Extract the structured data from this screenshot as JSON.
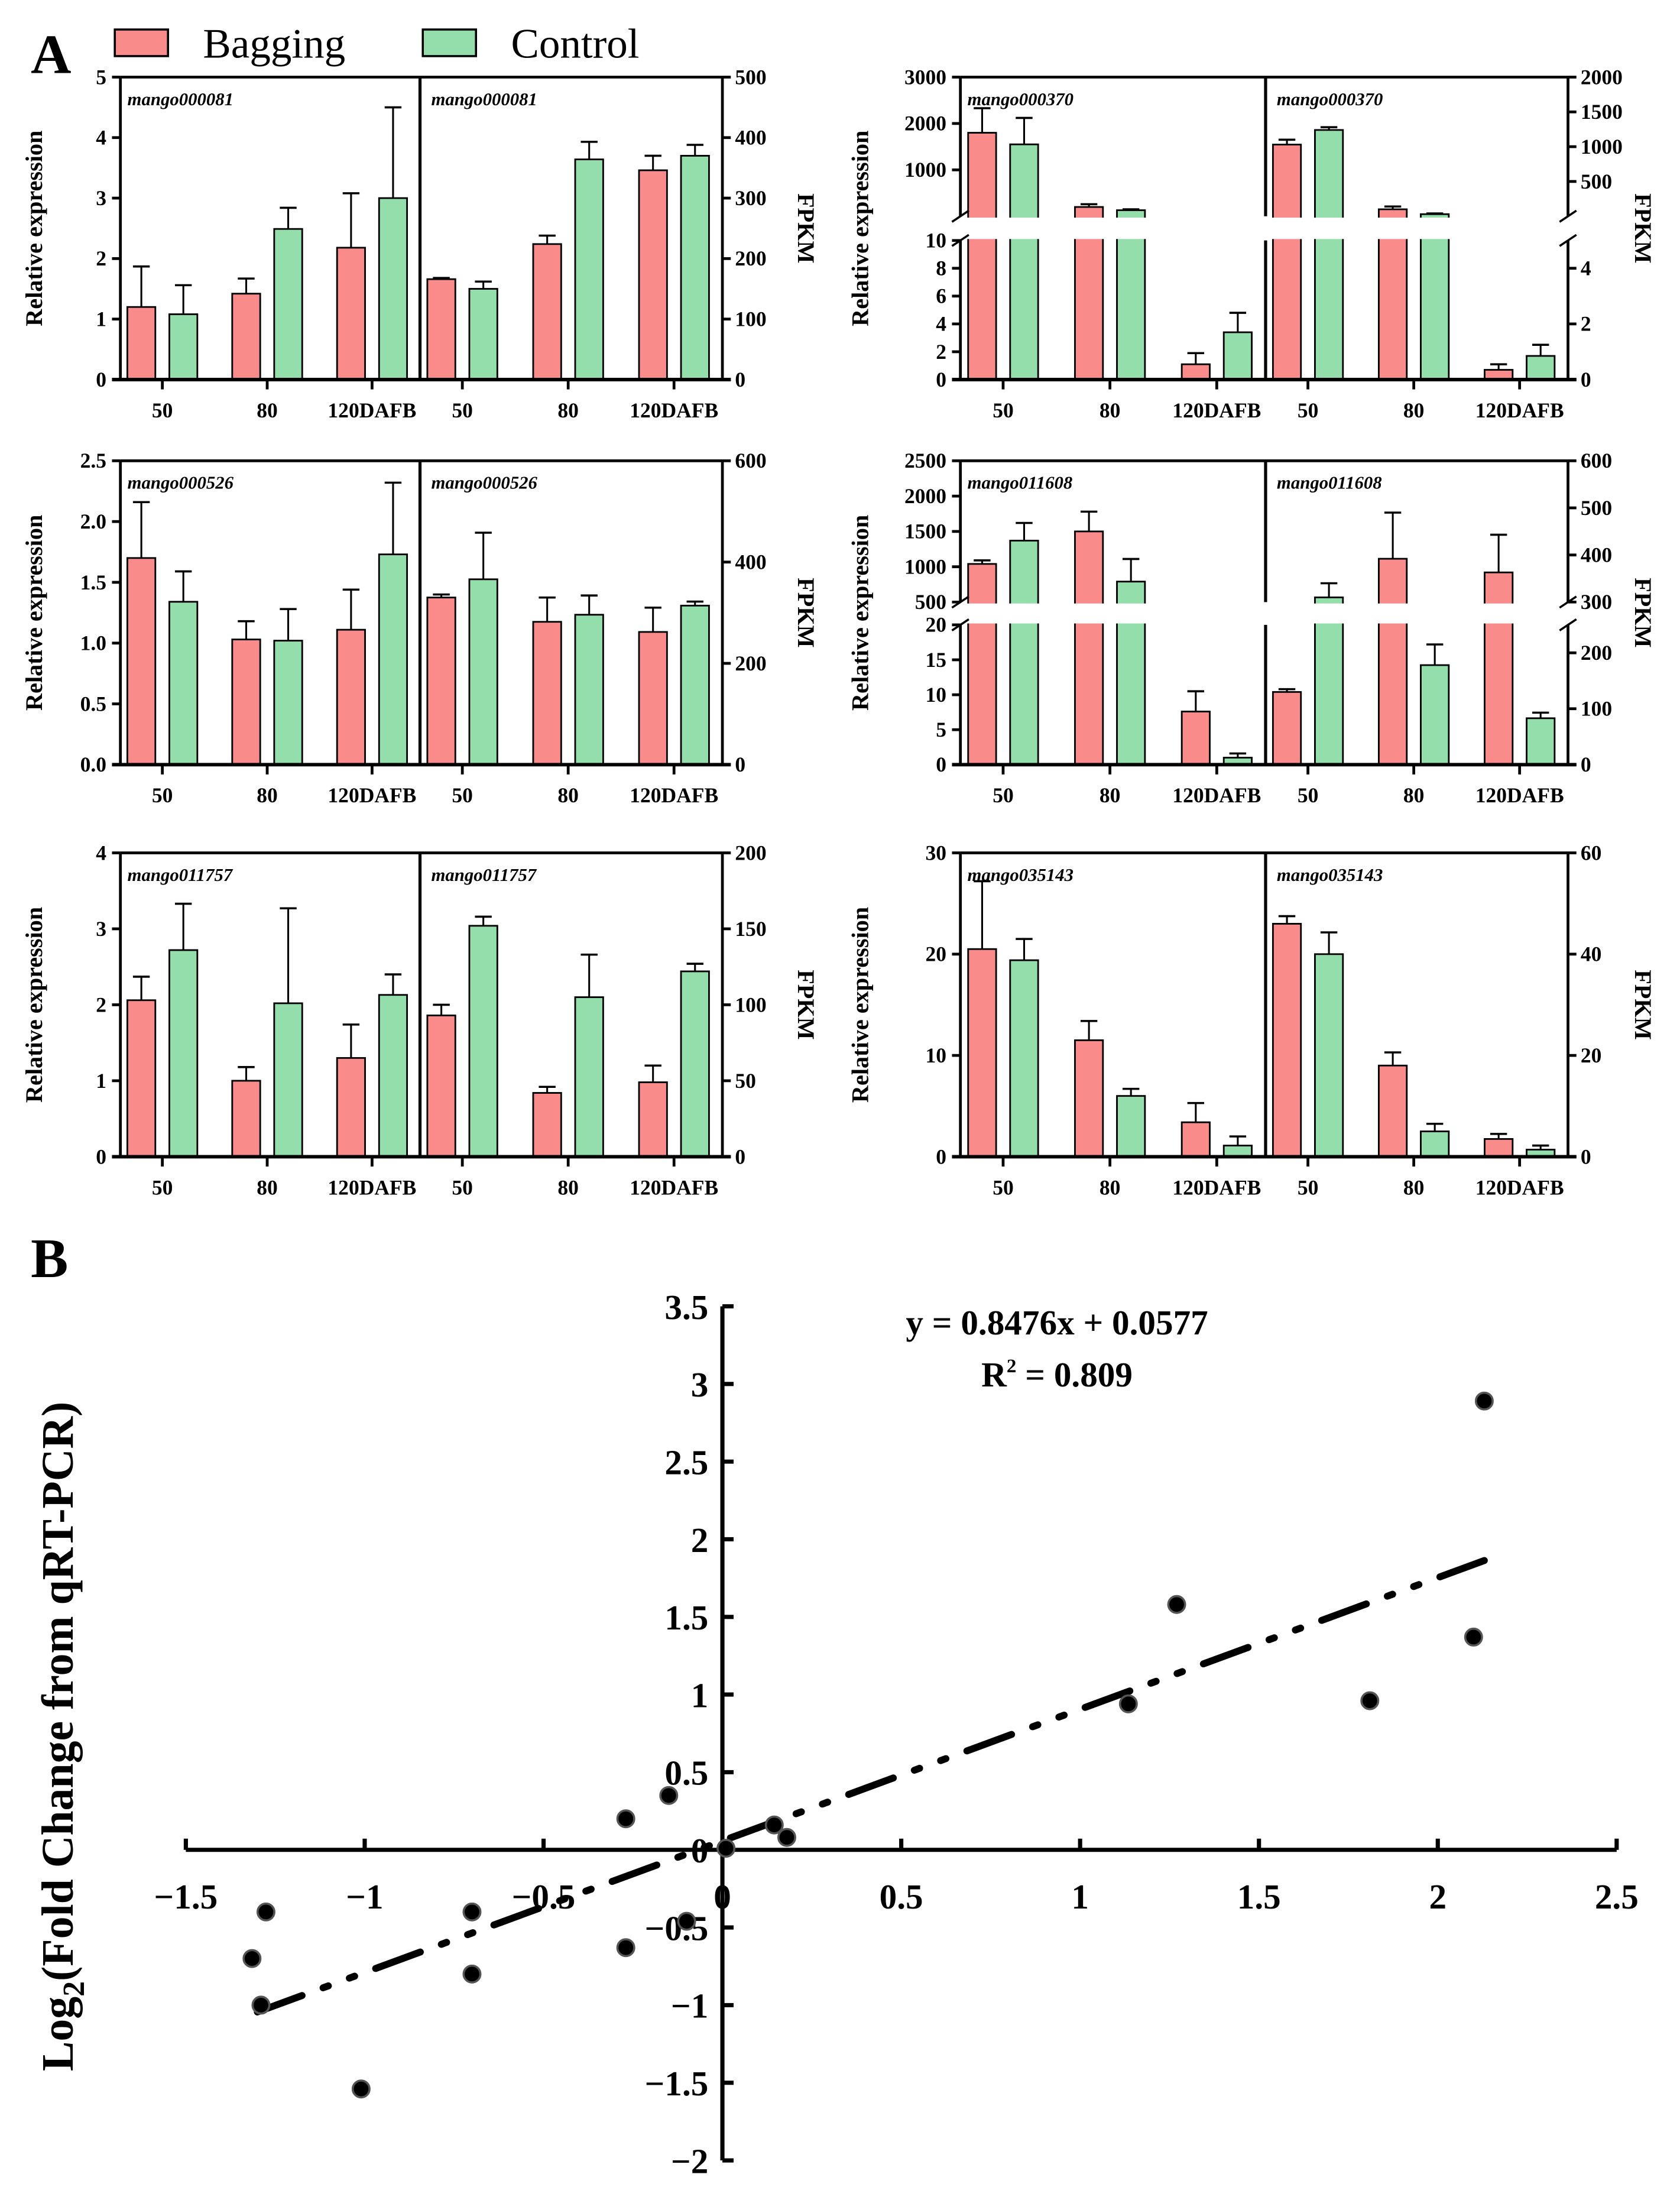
{
  "colors": {
    "bagging": "#F98B8B",
    "control": "#93DEAA",
    "axis": "#000000"
  },
  "panel_a": {
    "label": "A",
    "legend": [
      {
        "name": "Bagging",
        "color": "#F98B8B"
      },
      {
        "name": "Control",
        "color": "#93DEAA"
      }
    ],
    "left_ylabel": "Relative expression",
    "right_ylabel": "FPKM",
    "x_labels": [
      "50",
      "80",
      "120DAFB"
    ]
  },
  "chart_data": [
    {
      "type": "bar",
      "gene": "mango000081",
      "rel": {
        "ticks": [
          "0",
          "1",
          "2",
          "3",
          "4",
          "5"
        ],
        "ylim": [
          0,
          5
        ],
        "bagging": [
          1.2,
          1.42,
          2.18
        ],
        "bagging_err": [
          1.87,
          1.67,
          3.08
        ],
        "control": [
          1.08,
          2.49,
          3.0
        ],
        "control_err": [
          1.56,
          2.84,
          4.5
        ]
      },
      "fpkm": {
        "ticks": [
          "0",
          "100",
          "200",
          "300",
          "400",
          "500"
        ],
        "ylim": [
          0,
          500
        ],
        "bagging": [
          166,
          224,
          346
        ],
        "bagging_err": [
          168,
          238,
          370
        ],
        "control": [
          150,
          364,
          370
        ],
        "control_err": [
          162,
          393,
          388
        ]
      }
    },
    {
      "type": "bar",
      "gene": "mango000370",
      "rel": {
        "ticks": [
          "0",
          "2",
          "4",
          "6",
          "8",
          "10",
          "1000",
          "2000",
          "3000"
        ],
        "break": {
          "lower": [
            0,
            10
          ],
          "upper": [
            0,
            3000
          ]
        },
        "bagging": [
          1800,
          200,
          1.1
        ],
        "bagging_err": [
          2330,
          260,
          1.9
        ],
        "control": [
          1550,
          130,
          3.4
        ],
        "control_err": [
          2120,
          150,
          4.8
        ]
      },
      "fpkm": {
        "ticks": [
          "0",
          "2",
          "4",
          "500",
          "1000",
          "1500",
          "2000"
        ],
        "break": {
          "lower": [
            0,
            5
          ],
          "upper": [
            0,
            2000
          ]
        },
        "bagging": [
          1030,
          100,
          0.35
        ],
        "bagging_err": [
          1100,
          140,
          0.55
        ],
        "control": [
          1240,
          30,
          0.85
        ],
        "control_err": [
          1280,
          40,
          1.25
        ]
      }
    },
    {
      "type": "bar",
      "gene": "mango000526",
      "rel": {
        "ticks": [
          "0.0",
          "0.5",
          "1.0",
          "1.5",
          "2.0",
          "2.5"
        ],
        "ylim": [
          0,
          2.5
        ],
        "bagging": [
          1.7,
          1.03,
          1.11
        ],
        "bagging_err": [
          2.16,
          1.18,
          1.44
        ],
        "control": [
          1.34,
          1.02,
          1.73
        ],
        "control_err": [
          1.59,
          1.28,
          2.32
        ]
      },
      "fpkm": {
        "ticks": [
          "0",
          "200",
          "400",
          "600"
        ],
        "ylim": [
          0,
          600
        ],
        "bagging": [
          330,
          282,
          262
        ],
        "bagging_err": [
          336,
          330,
          310
        ],
        "control": [
          366,
          296,
          314
        ],
        "control_err": [
          458,
          334,
          322
        ]
      }
    },
    {
      "type": "bar",
      "gene": "mango011608",
      "rel": {
        "ticks": [
          "0",
          "5",
          "10",
          "15",
          "20",
          "500",
          "1000",
          "1500",
          "2000",
          "2500"
        ],
        "break": {
          "lower": [
            0,
            20
          ],
          "upper": [
            500,
            2500
          ]
        },
        "bagging": [
          1040,
          1500,
          7.6
        ],
        "bagging_err": [
          1090,
          1780,
          10.5
        ],
        "control": [
          1370,
          790,
          1.0
        ],
        "control_err": [
          1620,
          1110,
          1.6
        ]
      },
      "fpkm": {
        "ticks": [
          "0",
          "100",
          "200",
          "300",
          "400",
          "500",
          "600"
        ],
        "break": {
          "lower": [
            0,
            250
          ],
          "upper": [
            300,
            600
          ]
        },
        "bagging": [
          130,
          392,
          363
        ],
        "bagging_err": [
          135,
          490,
          443
        ],
        "control": [
          310,
          178,
          83
        ],
        "control_err": [
          340,
          215,
          93
        ]
      }
    },
    {
      "type": "bar",
      "gene": "mango011757",
      "rel": {
        "ticks": [
          "0",
          "1",
          "2",
          "3",
          "4"
        ],
        "ylim": [
          0,
          4
        ],
        "bagging": [
          2.06,
          1.0,
          1.3
        ],
        "bagging_err": [
          2.37,
          1.18,
          1.74
        ],
        "control": [
          2.72,
          2.02,
          2.13
        ],
        "control_err": [
          3.33,
          3.27,
          2.4
        ]
      },
      "fpkm": {
        "ticks": [
          "0",
          "50",
          "100",
          "150",
          "200"
        ],
        "ylim": [
          0,
          200
        ],
        "bagging": [
          93,
          42,
          49
        ],
        "bagging_err": [
          100,
          46,
          60
        ],
        "control": [
          152,
          105,
          122
        ],
        "control_err": [
          158,
          133,
          127
        ]
      }
    },
    {
      "type": "bar",
      "gene": "mango035143",
      "rel": {
        "ticks": [
          "0",
          "10",
          "20",
          "30"
        ],
        "ylim": [
          0,
          30
        ],
        "bagging": [
          20.5,
          11.5,
          3.4
        ],
        "bagging_err": [
          27.2,
          13.4,
          5.3
        ],
        "control": [
          19.4,
          6.0,
          1.1
        ],
        "control_err": [
          21.5,
          6.7,
          2.0
        ]
      },
      "fpkm": {
        "ticks": [
          "0",
          "20",
          "40",
          "60"
        ],
        "ylim": [
          0,
          60
        ],
        "bagging": [
          46,
          18,
          3.5
        ],
        "bagging_err": [
          47.5,
          20.6,
          4.5
        ],
        "control": [
          40,
          5,
          1.4
        ],
        "control_err": [
          44.3,
          6.5,
          2.2
        ]
      }
    },
    {
      "type": "scatter",
      "label": "B",
      "ylabel_main": "Log",
      "ylabel_sub": "2",
      "ylabel_rest": "(Fold Change from qRT-PCR)",
      "equation": "y = 0.8476x + 0.0577",
      "r2_prefix": "R",
      "r2_sup": "2",
      "r2_rest": " = 0.809",
      "xlim": [
        -1.5,
        2.5
      ],
      "ylim": [
        -2,
        3.5
      ],
      "xticks": [
        "−1.5",
        "−1",
        "−0.5",
        "0",
        "0.5",
        "1",
        "1.5",
        "2",
        "2.5"
      ],
      "yticks": [
        "−2",
        "−1.5",
        "−1",
        "−0.5",
        "0",
        "0.5",
        "1",
        "1.5",
        "2",
        "2.5",
        "3",
        "3.5"
      ],
      "trend": {
        "slope": 0.8476,
        "intercept": 0.0577,
        "x_range": [
          -1.3,
          2.13
        ]
      },
      "points": [
        [
          -1.276,
          -0.4
        ],
        [
          -1.315,
          -0.7
        ],
        [
          -1.29,
          -1.0
        ],
        [
          -1.01,
          -1.54
        ],
        [
          -0.7,
          -0.4
        ],
        [
          -0.7,
          -0.8
        ],
        [
          -0.27,
          0.2
        ],
        [
          -0.15,
          0.35
        ],
        [
          -0.27,
          -0.63
        ],
        [
          -0.1,
          -0.46
        ],
        [
          0.01,
          0.01
        ],
        [
          0.145,
          0.16
        ],
        [
          0.18,
          0.08
        ],
        [
          1.135,
          0.94
        ],
        [
          1.27,
          1.58
        ],
        [
          1.81,
          0.96
        ],
        [
          2.1,
          1.37
        ],
        [
          2.13,
          2.89
        ]
      ]
    }
  ]
}
